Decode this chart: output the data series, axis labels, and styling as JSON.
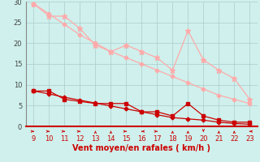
{
  "x": [
    9,
    10,
    11,
    12,
    13,
    14,
    15,
    16,
    17,
    18,
    19,
    20,
    21,
    22,
    23
  ],
  "rafales": [
    29.5,
    26.5,
    26.5,
    23.5,
    19.5,
    18.0,
    19.5,
    18.0,
    16.5,
    13.5,
    23.0,
    16.0,
    13.5,
    11.5,
    6.5
  ],
  "moyen": [
    8.5,
    8.5,
    6.5,
    6.0,
    5.5,
    5.5,
    5.5,
    3.5,
    3.5,
    2.5,
    5.5,
    2.5,
    1.5,
    1.0,
    1.0
  ],
  "tendance_rafales": [
    29.5,
    27.0,
    24.5,
    22.0,
    20.0,
    18.0,
    16.5,
    15.0,
    13.5,
    12.0,
    10.5,
    9.0,
    7.5,
    6.5,
    5.5
  ],
  "tendance_moyen": [
    8.5,
    7.8,
    7.0,
    6.3,
    5.6,
    4.9,
    4.2,
    3.5,
    2.8,
    2.1,
    1.8,
    1.5,
    1.0,
    0.7,
    0.5
  ],
  "rafales_color": "#ffaaaa",
  "moyen_color": "#cc0000",
  "tendance_color": "#cc0000",
  "bg_color": "#cff0ec",
  "grid_color": "#aacccc",
  "axis_color": "#cc0000",
  "xlabel": "Vent moyen/en rafales ( km/h )",
  "ylim": [
    0,
    30
  ],
  "xlim": [
    8.5,
    23.5
  ],
  "yticks": [
    0,
    5,
    10,
    15,
    20,
    25,
    30
  ],
  "arrow_angles": [
    90,
    90,
    90,
    90,
    0,
    0,
    90,
    270,
    90,
    0,
    0,
    180,
    0,
    0,
    270
  ]
}
